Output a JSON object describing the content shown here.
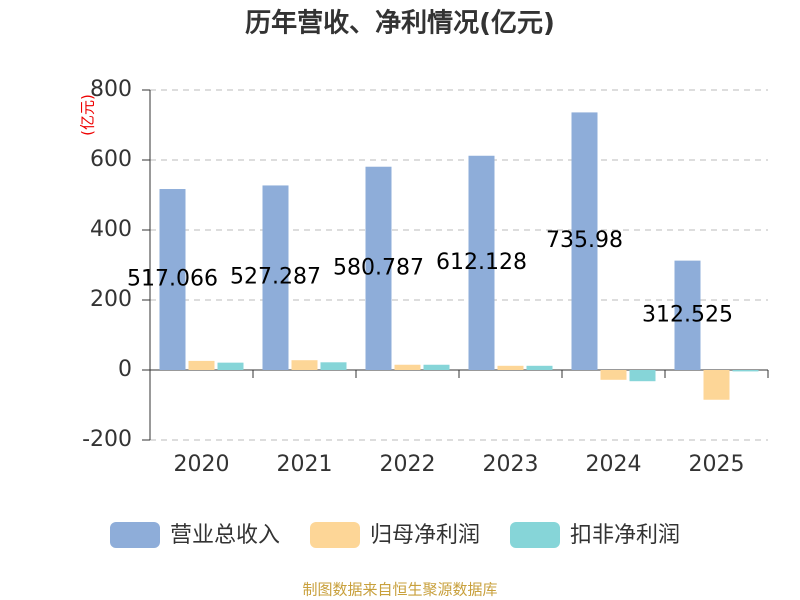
{
  "chart_data": {
    "type": "bar",
    "title": "历年营收、净利情况(亿元)",
    "y_label": "(亿元)",
    "source": "制图数据来自恒生聚源数据库",
    "categories": [
      "2020",
      "2021",
      "2022",
      "2023",
      "2024",
      "2025"
    ],
    "series": [
      {
        "name": "营业总收入",
        "color": "#8eadd9",
        "values": [
          517.066,
          527.287,
          580.787,
          612.128,
          735.98,
          312.525
        ]
      },
      {
        "name": "归母净利润",
        "color": "#fdd697",
        "values": [
          26,
          28,
          15,
          12,
          -28,
          -85
        ]
      },
      {
        "name": "扣非净利润",
        "color": "#86d5d8",
        "values": [
          21,
          22,
          15,
          12,
          -32,
          -4
        ]
      }
    ],
    "ylim": [
      -200,
      800
    ],
    "yticks": [
      -200,
      0,
      200,
      400,
      600,
      800
    ],
    "grid": true
  }
}
